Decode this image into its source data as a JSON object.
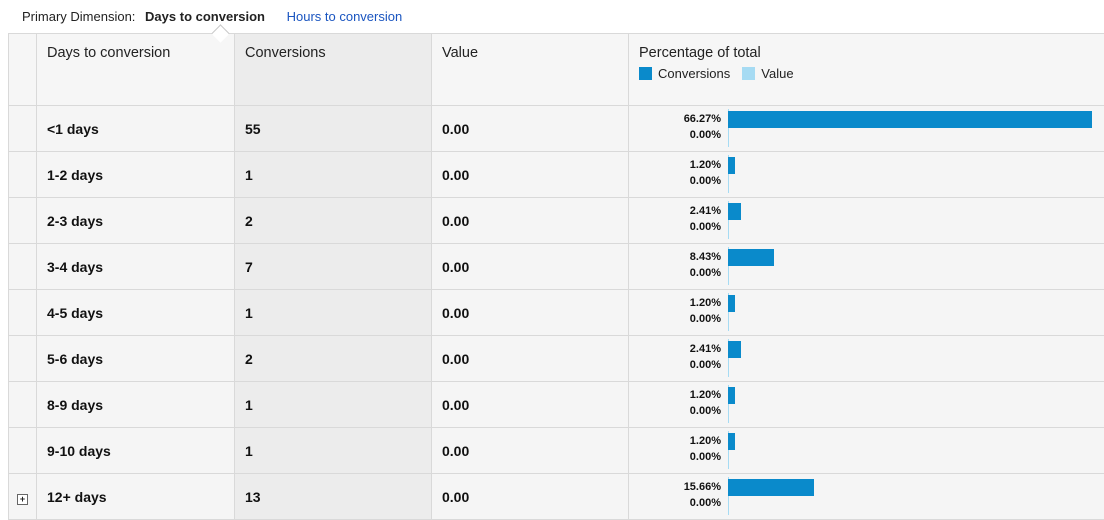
{
  "dimension": {
    "label": "Primary Dimension:",
    "active": "Days to conversion",
    "alternate": "Hours to conversion"
  },
  "table": {
    "headers": {
      "dimension": "Days to conversion",
      "conversions": "Conversions",
      "value": "Value",
      "percentage": "Percentage of total"
    },
    "legend": {
      "conversions": "Conversions",
      "value": "Value",
      "conversions_color": "#0a8acb",
      "value_color": "#a6dbf3"
    },
    "rows": [
      {
        "dimension": "<1 days",
        "conversions": "55",
        "value": "0.00",
        "pct_conversions": "66.27%",
        "pct_value": "0.00%",
        "fraction": 0.6627,
        "expandable": false
      },
      {
        "dimension": "1-2 days",
        "conversions": "1",
        "value": "0.00",
        "pct_conversions": "1.20%",
        "pct_value": "0.00%",
        "fraction": 0.012,
        "expandable": false
      },
      {
        "dimension": "2-3 days",
        "conversions": "2",
        "value": "0.00",
        "pct_conversions": "2.41%",
        "pct_value": "0.00%",
        "fraction": 0.0241,
        "expandable": false
      },
      {
        "dimension": "3-4 days",
        "conversions": "7",
        "value": "0.00",
        "pct_conversions": "8.43%",
        "pct_value": "0.00%",
        "fraction": 0.0843,
        "expandable": false
      },
      {
        "dimension": "4-5 days",
        "conversions": "1",
        "value": "0.00",
        "pct_conversions": "1.20%",
        "pct_value": "0.00%",
        "fraction": 0.012,
        "expandable": false
      },
      {
        "dimension": "5-6 days",
        "conversions": "2",
        "value": "0.00",
        "pct_conversions": "2.41%",
        "pct_value": "0.00%",
        "fraction": 0.0241,
        "expandable": false
      },
      {
        "dimension": "8-9 days",
        "conversions": "1",
        "value": "0.00",
        "pct_conversions": "1.20%",
        "pct_value": "0.00%",
        "fraction": 0.012,
        "expandable": false
      },
      {
        "dimension": "9-10 days",
        "conversions": "1",
        "value": "0.00",
        "pct_conversions": "1.20%",
        "pct_value": "0.00%",
        "fraction": 0.012,
        "expandable": false
      },
      {
        "dimension": "12+ days",
        "conversions": "13",
        "value": "0.00",
        "pct_conversions": "15.66%",
        "pct_value": "0.00%",
        "fraction": 0.1566,
        "expandable": true
      }
    ]
  },
  "icons": {
    "expand": "plus-box-icon"
  }
}
